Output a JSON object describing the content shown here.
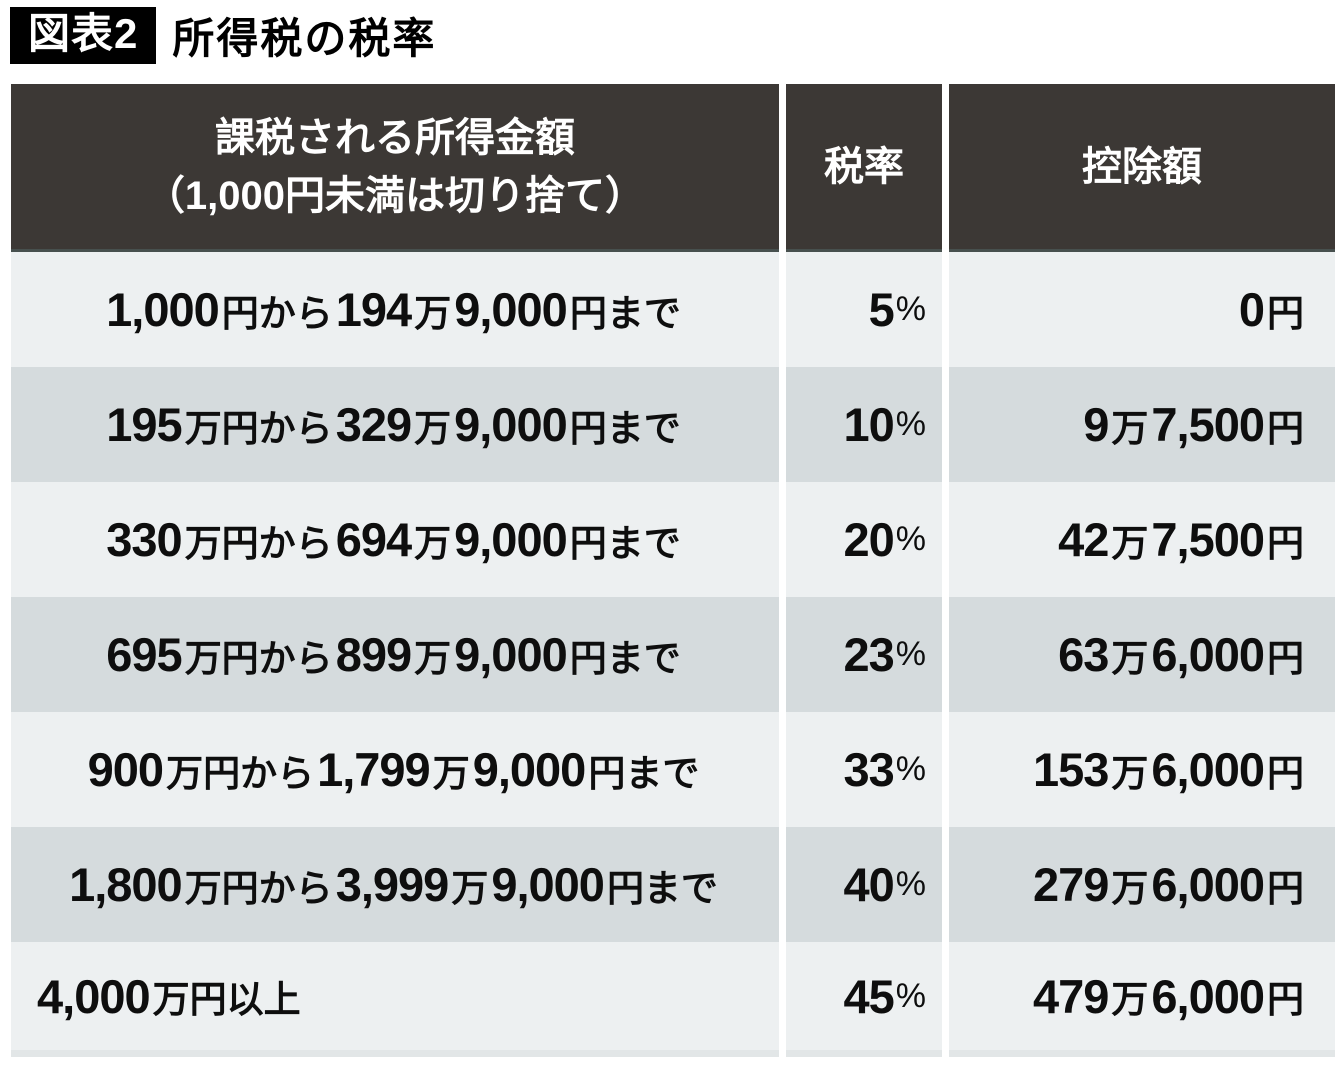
{
  "title": {
    "badge": "図表2",
    "text": "所得税の税率"
  },
  "table": {
    "headers": {
      "income_line1": "課税される所得金額",
      "income_line2": "（1,000円未満は切り捨て）",
      "rate": "税率",
      "deduction": "控除額"
    },
    "rows": [
      {
        "income": [
          [
            "n",
            "1,000"
          ],
          [
            "j",
            "円から"
          ],
          [
            "n",
            "194"
          ],
          [
            "j",
            "万"
          ],
          [
            "n",
            "9,000"
          ],
          [
            "j",
            "円まで"
          ]
        ],
        "rate": [
          [
            "n",
            "5"
          ],
          [
            "s",
            "%"
          ]
        ],
        "deduction": [
          [
            "n",
            "0"
          ],
          [
            "j",
            "円"
          ]
        ],
        "income_align": "center"
      },
      {
        "income": [
          [
            "n",
            "195"
          ],
          [
            "j",
            "万円から"
          ],
          [
            "n",
            "329"
          ],
          [
            "j",
            "万"
          ],
          [
            "n",
            "9,000"
          ],
          [
            "j",
            "円まで"
          ]
        ],
        "rate": [
          [
            "n",
            "10"
          ],
          [
            "s",
            "%"
          ]
        ],
        "deduction": [
          [
            "n",
            "9"
          ],
          [
            "j",
            "万"
          ],
          [
            "n",
            "7,500"
          ],
          [
            "j",
            "円"
          ]
        ],
        "income_align": "center"
      },
      {
        "income": [
          [
            "n",
            "330"
          ],
          [
            "j",
            "万円から"
          ],
          [
            "n",
            "694"
          ],
          [
            "j",
            "万"
          ],
          [
            "n",
            "9,000"
          ],
          [
            "j",
            "円まで"
          ]
        ],
        "rate": [
          [
            "n",
            "20"
          ],
          [
            "s",
            "%"
          ]
        ],
        "deduction": [
          [
            "n",
            "42"
          ],
          [
            "j",
            "万"
          ],
          [
            "n",
            "7,500"
          ],
          [
            "j",
            "円"
          ]
        ],
        "income_align": "center"
      },
      {
        "income": [
          [
            "n",
            "695"
          ],
          [
            "j",
            "万円から"
          ],
          [
            "n",
            "899"
          ],
          [
            "j",
            "万"
          ],
          [
            "n",
            "9,000"
          ],
          [
            "j",
            "円まで"
          ]
        ],
        "rate": [
          [
            "n",
            "23"
          ],
          [
            "s",
            "%"
          ]
        ],
        "deduction": [
          [
            "n",
            "63"
          ],
          [
            "j",
            "万"
          ],
          [
            "n",
            "6,000"
          ],
          [
            "j",
            "円"
          ]
        ],
        "income_align": "center"
      },
      {
        "income": [
          [
            "n",
            "900"
          ],
          [
            "j",
            "万円から"
          ],
          [
            "n",
            "1,799"
          ],
          [
            "j",
            "万"
          ],
          [
            "n",
            "9,000"
          ],
          [
            "j",
            "円まで"
          ]
        ],
        "rate": [
          [
            "n",
            "33"
          ],
          [
            "s",
            "%"
          ]
        ],
        "deduction": [
          [
            "n",
            "153"
          ],
          [
            "j",
            "万"
          ],
          [
            "n",
            "6,000"
          ],
          [
            "j",
            "円"
          ]
        ],
        "income_align": "center"
      },
      {
        "income": [
          [
            "n",
            "1,800"
          ],
          [
            "j",
            "万円から"
          ],
          [
            "n",
            "3,999"
          ],
          [
            "j",
            "万"
          ],
          [
            "n",
            "9,000"
          ],
          [
            "j",
            "円まで"
          ]
        ],
        "rate": [
          [
            "n",
            "40"
          ],
          [
            "s",
            "%"
          ]
        ],
        "deduction": [
          [
            "n",
            "279"
          ],
          [
            "j",
            "万"
          ],
          [
            "n",
            "6,000"
          ],
          [
            "j",
            "円"
          ]
        ],
        "income_align": "center"
      },
      {
        "income": [
          [
            "n",
            "4,000"
          ],
          [
            "j",
            "万円以上"
          ]
        ],
        "rate": [
          [
            "n",
            "45"
          ],
          [
            "s",
            "%"
          ]
        ],
        "deduction": [
          [
            "n",
            "479"
          ],
          [
            "j",
            "万"
          ],
          [
            "n",
            "6,000"
          ],
          [
            "j",
            "円"
          ]
        ],
        "income_align": "left"
      }
    ]
  },
  "colors": {
    "header_bg": "#3c3835",
    "header_text": "#ffffff",
    "row_light": "#edf0f1",
    "row_dark": "#d5dbdd",
    "badge_bg": "#000000",
    "text": "#0e0e0e"
  },
  "chart_data": {
    "type": "table",
    "title": "所得税の税率",
    "figure_label": "図表2",
    "columns": [
      "課税される所得金額（1,000円未満は切り捨て）",
      "税率",
      "控除額"
    ],
    "rows": [
      [
        "1,000円から194万9,000円まで",
        "5%",
        "0円"
      ],
      [
        "195万円から329万9,000円まで",
        "10%",
        "9万7,500円"
      ],
      [
        "330万円から694万9,000円まで",
        "20%",
        "42万7,500円"
      ],
      [
        "695万円から899万9,000円まで",
        "23%",
        "63万6,000円"
      ],
      [
        "900万円から1,799万9,000円まで",
        "33%",
        "153万6,000円"
      ],
      [
        "1,800万円から3,999万9,000円まで",
        "40%",
        "279万6,000円"
      ],
      [
        "4,000万円以上",
        "45%",
        "479万6,000円"
      ]
    ]
  }
}
